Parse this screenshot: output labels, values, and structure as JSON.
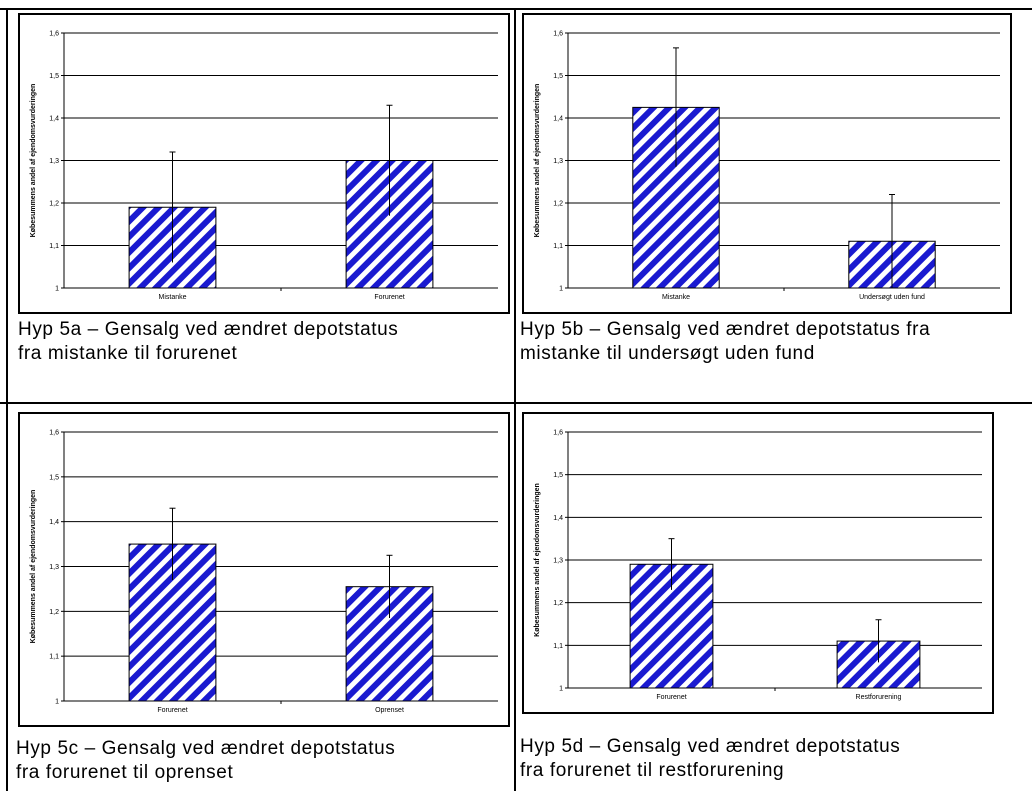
{
  "colors": {
    "bar_stripe": "#1a1ad0",
    "bar_bg": "#ffffff",
    "grid": "#000000"
  },
  "panels": [
    {
      "id": "5a",
      "caption": "Hyp 5a – Gensalg ved ændret depotstatus\nfra mistanke til forurenet",
      "chart_data": {
        "type": "bar",
        "ylabel": "Købesummens andel af ejendomsvurderingen",
        "ylim": [
          1,
          1.6
        ],
        "yticks": [
          "1",
          "1,1",
          "1,2",
          "1,3",
          "1,4",
          "1,5",
          "1,6"
        ],
        "categories": [
          "Mistanke",
          "Forurenet"
        ],
        "values": [
          1.19,
          1.3
        ],
        "errors": [
          0.13,
          0.13
        ],
        "grid": true,
        "legend": "none"
      }
    },
    {
      "id": "5b",
      "caption": "Hyp 5b – Gensalg ved ændret depotstatus fra\nmistanke til undersøgt uden fund",
      "chart_data": {
        "type": "bar",
        "ylabel": "Købesummens andel af ejendomsvurderingen",
        "ylim": [
          1,
          1.6
        ],
        "yticks": [
          "1",
          "1,1",
          "1,2",
          "1,3",
          "1,4",
          "1,5",
          "1,6"
        ],
        "categories": [
          "Mistanke",
          "Undersøgt uden fund"
        ],
        "values": [
          1.425,
          1.11
        ],
        "errors": [
          0.14,
          0.11
        ],
        "grid": true,
        "legend": "none"
      }
    },
    {
      "id": "5c",
      "caption": "Hyp 5c – Gensalg ved ændret depotstatus\nfra forurenet til oprenset",
      "chart_data": {
        "type": "bar",
        "ylabel": "Købesummens andel af ejendomsvurderingen",
        "ylim": [
          1,
          1.6
        ],
        "yticks": [
          "1",
          "1,1",
          "1,2",
          "1,3",
          "1,4",
          "1,5",
          "1,6"
        ],
        "categories": [
          "Forurenet",
          "Oprenset"
        ],
        "values": [
          1.35,
          1.255
        ],
        "errors": [
          0.08,
          0.07
        ],
        "grid": true,
        "legend": "none"
      }
    },
    {
      "id": "5d",
      "caption": " Hyp 5d – Gensalg ved ændret depotstatus\nfra forurenet til restforurening",
      "chart_data": {
        "type": "bar",
        "ylabel": "Købesummens andel af ejendomsvurderingen",
        "ylim": [
          1,
          1.6
        ],
        "yticks": [
          "1",
          "1,1",
          "1,2",
          "1,3",
          "1,4",
          "1,5",
          "1,6"
        ],
        "categories": [
          "Forurenet",
          "Restforurening"
        ],
        "values": [
          1.29,
          1.11
        ],
        "errors": [
          0.06,
          0.05
        ],
        "grid": true,
        "legend": "none"
      }
    }
  ]
}
